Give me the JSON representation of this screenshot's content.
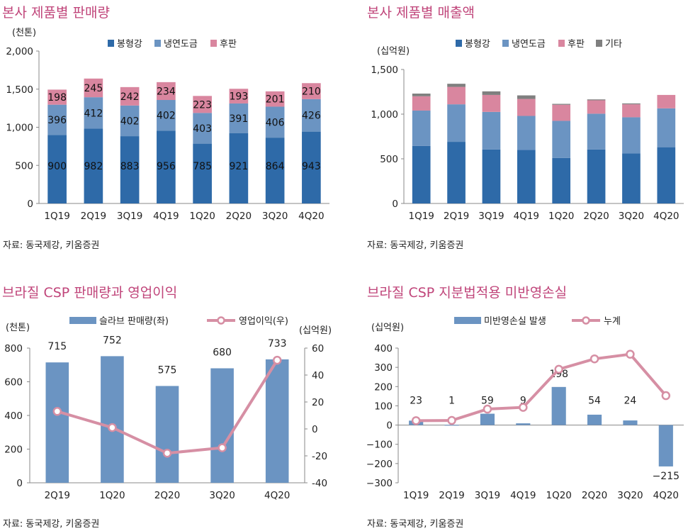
{
  "colors": {
    "title": "#c0457a",
    "bar_dark": "#2e6aa8",
    "bar_mid": "#6b94c2",
    "bar_pink": "#d9869f",
    "bar_gray": "#7f7f7f",
    "line_pink": "#d68fa4",
    "axis": "#888888"
  },
  "panels": [
    {
      "title": "본사 제품별 판매량",
      "source": "자료: 동국제강, 키움증권"
    },
    {
      "title": "본사 제품별 매출액",
      "source": "자료: 동국제강, 키움증권"
    },
    {
      "title": "브라질 CSP 판매량과 영업이익",
      "source": "자료: 동국제강, 키움증권"
    },
    {
      "title": "브라질 CSP 지분법적용 미반영손실",
      "source": "자료: 동국제강, 키움증권"
    }
  ],
  "chart_data": [
    {
      "type": "bar",
      "stacked": true,
      "title": "본사 제품별 판매량",
      "unit_label": "(천톤)",
      "categories": [
        "1Q19",
        "2Q19",
        "3Q19",
        "4Q19",
        "1Q20",
        "2Q20",
        "3Q20",
        "4Q20"
      ],
      "series": [
        {
          "name": "봉형강",
          "values": [
            900,
            982,
            883,
            956,
            785,
            921,
            864,
            943
          ]
        },
        {
          "name": "냉연도금",
          "values": [
            396,
            412,
            402,
            402,
            403,
            391,
            406,
            426
          ]
        },
        {
          "name": "후판",
          "values": [
            198,
            245,
            242,
            234,
            223,
            193,
            201,
            210
          ]
        }
      ],
      "ylim": [
        0,
        2000
      ],
      "yticks": [
        "0",
        "500",
        "1,000",
        "1,500",
        "2,000"
      ],
      "legend": "top"
    },
    {
      "type": "bar",
      "stacked": true,
      "title": "본사 제품별 매출액",
      "unit_label": "(십억원)",
      "categories": [
        "1Q19",
        "2Q19",
        "3Q19",
        "4Q19",
        "1Q20",
        "2Q20",
        "3Q20",
        "4Q20"
      ],
      "series": [
        {
          "name": "봉형강",
          "values": [
            645,
            690,
            605,
            600,
            510,
            605,
            560,
            630
          ]
        },
        {
          "name": "냉연도금",
          "values": [
            395,
            420,
            420,
            380,
            415,
            400,
            405,
            435
          ]
        },
        {
          "name": "후판",
          "values": [
            160,
            195,
            190,
            190,
            180,
            150,
            145,
            150
          ]
        },
        {
          "name": "기타",
          "values": [
            30,
            35,
            40,
            40,
            10,
            10,
            10,
            0
          ]
        }
      ],
      "ylim": [
        0,
        1500
      ],
      "yticks": [
        "0",
        "500",
        "1,000",
        "1,500"
      ],
      "legend": "top"
    },
    {
      "type": "bar+line",
      "title": "브라질 CSP 판매량과 영업이익",
      "left_unit_label": "(천톤)",
      "right_unit_label": "(십억원)",
      "categories": [
        "2Q19",
        "1Q20",
        "2Q20",
        "3Q20",
        "4Q20"
      ],
      "series": [
        {
          "name": "슬라브 판매량(좌)",
          "type": "bar",
          "axis": "left",
          "values": [
            715,
            752,
            575,
            680,
            733
          ]
        },
        {
          "name": "영업이익(우)",
          "type": "line",
          "axis": "right",
          "values": [
            13,
            1,
            -18,
            -14,
            51
          ]
        }
      ],
      "ylim_left": [
        0,
        800
      ],
      "ylim_right": [
        -40,
        60
      ],
      "yticks_left": [
        "0",
        "200",
        "400",
        "600",
        "800"
      ],
      "yticks_right": [
        "-40",
        "-20",
        "0",
        "20",
        "40",
        "60"
      ],
      "legend": "top"
    },
    {
      "type": "bar+line",
      "title": "브라질 CSP 지분법적용 미반영손실",
      "unit_label": "(십억원)",
      "categories": [
        "1Q19",
        "2Q19",
        "3Q19",
        "4Q19",
        "1Q20",
        "2Q20",
        "3Q20",
        "4Q20"
      ],
      "series": [
        {
          "name": "미반영손실 발생",
          "type": "bar",
          "values": [
            23,
            1,
            59,
            9,
            198,
            54,
            24,
            -215
          ]
        },
        {
          "name": "누계",
          "type": "line",
          "values": [
            23,
            24,
            83,
            92,
            290,
            344,
            368,
            153
          ]
        }
      ],
      "bar_labels": [
        "23",
        "1",
        "59",
        "9",
        "198",
        "54",
        "24",
        "−215"
      ],
      "ylim": [
        -300,
        400
      ],
      "yticks": [
        "−300",
        "−200",
        "−100",
        "0",
        "100",
        "200",
        "300",
        "400"
      ],
      "legend": "top"
    }
  ]
}
